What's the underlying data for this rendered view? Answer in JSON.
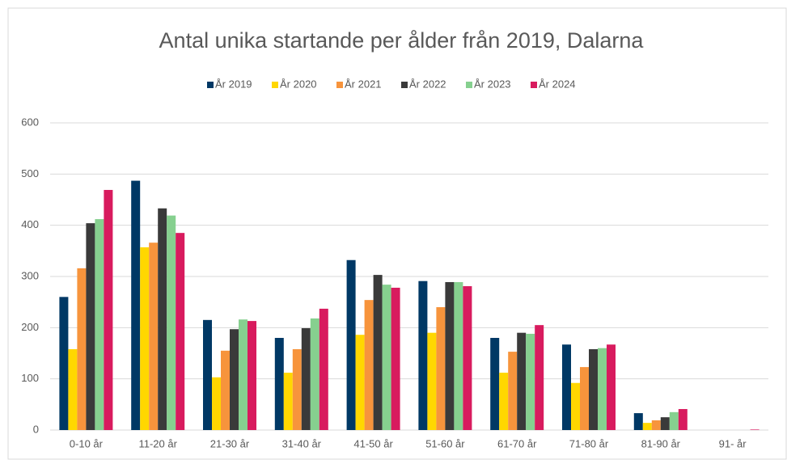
{
  "chart_data": {
    "type": "bar",
    "title": "Antal unika startande per ålder från 2019, Dalarna",
    "categories": [
      "0-10 år",
      "11-20 år",
      "21-30 år",
      "31-40 år",
      "41-50 år",
      "51-60 år",
      "61-70 år",
      "71-80 år",
      "81-90 år",
      "91- år"
    ],
    "series": [
      {
        "name": "År 2019",
        "color": "#003865",
        "values": [
          260,
          487,
          215,
          180,
          332,
          291,
          180,
          167,
          33,
          0
        ]
      },
      {
        "name": "År 2020",
        "color": "#ffd700",
        "values": [
          158,
          357,
          103,
          112,
          186,
          190,
          112,
          92,
          14,
          0
        ]
      },
      {
        "name": "År 2021",
        "color": "#f7943c",
        "values": [
          316,
          366,
          155,
          158,
          254,
          240,
          153,
          123,
          19,
          0
        ]
      },
      {
        "name": "År 2022",
        "color": "#3a3a3a",
        "values": [
          404,
          433,
          197,
          199,
          303,
          289,
          190,
          158,
          25,
          0
        ]
      },
      {
        "name": "År 2023",
        "color": "#86d08f",
        "values": [
          412,
          419,
          216,
          218,
          284,
          289,
          188,
          160,
          35,
          0
        ]
      },
      {
        "name": "År 2024",
        "color": "#d81b5e",
        "values": [
          469,
          385,
          213,
          237,
          278,
          281,
          205,
          167,
          41,
          1
        ]
      }
    ],
    "ylim": [
      0,
      600
    ],
    "yticks": [
      0,
      100,
      200,
      300,
      400,
      500,
      600
    ],
    "grid": true,
    "legend": "top"
  }
}
